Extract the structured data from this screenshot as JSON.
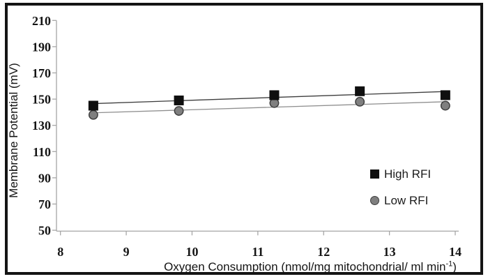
{
  "chart_data": {
    "type": "scatter",
    "title": "",
    "xlabel": "Oxygen Consumption (nmol/mg mitochondrial/ ml min-1)",
    "xlabel_parts": {
      "main": "Oxygen Consumption (nmol/mg mitochondrial/ ml min",
      "sup": "-1",
      "close": ")"
    },
    "ylabel": "Membrane Potential (mV)",
    "xlim": [
      8,
      14
    ],
    "ylim": [
      50,
      210
    ],
    "xticks": [
      8,
      9,
      10,
      11,
      12,
      13,
      14
    ],
    "yticks": [
      210,
      190,
      170,
      150,
      130,
      110,
      90,
      70,
      50
    ],
    "grid": false,
    "legend_position": "inside-right",
    "x": [
      8.5,
      9.8,
      11.25,
      12.55,
      13.85
    ],
    "series": [
      {
        "name": "High RFI",
        "marker": "square-marker-icon",
        "values": [
          145,
          149,
          153,
          156,
          153
        ],
        "marker_color": "#0f0f0f",
        "marker_stroke": "#0f0f0f",
        "trend_color": "#3d3d3d",
        "trendline": true
      },
      {
        "name": "Low RFI",
        "marker": "circle-marker-icon",
        "values": [
          138,
          141,
          147,
          148,
          145
        ],
        "marker_color": "#7f7f7f",
        "marker_stroke": "#3d3d3d",
        "trend_color": "#8f8f8f",
        "trendline": true
      }
    ],
    "colors": {
      "axis": "#a6a6a6",
      "text": "#141414",
      "frame_border": "#141414",
      "background": "#ffffff"
    }
  }
}
